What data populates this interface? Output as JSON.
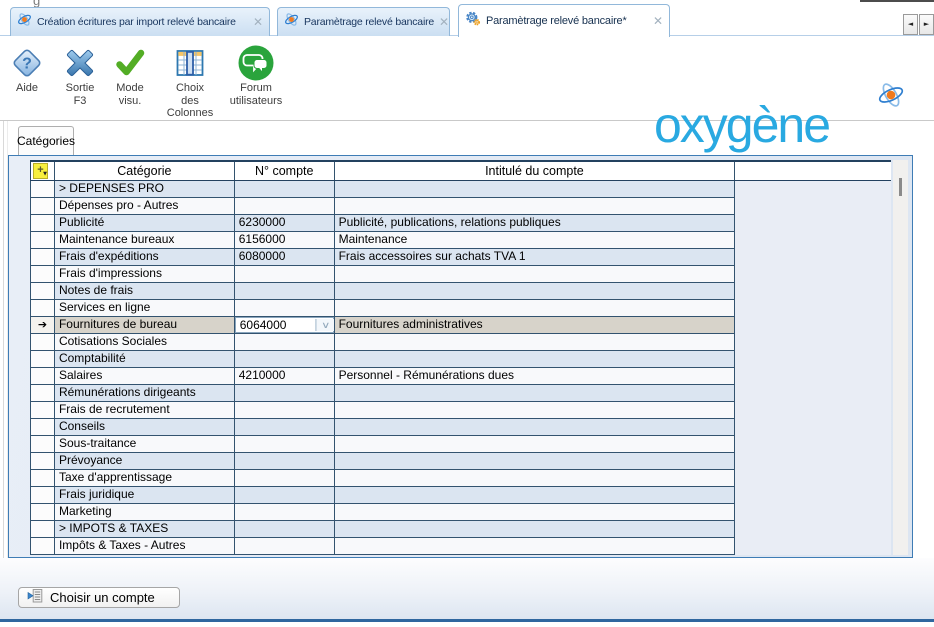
{
  "window": {
    "edge_fragment": "g"
  },
  "tab_bar": {
    "close_glyph": "✕",
    "scroll_left_glyph": "◄",
    "scroll_right_glyph": "►",
    "tabs": [
      {
        "label": "Création écritures par import relevé bancaire"
      },
      {
        "label": "Paramètrage relevé bancaire"
      },
      {
        "label": "Paramètrage relevé bancaire*"
      }
    ]
  },
  "toolbar": {
    "buttons": [
      {
        "label": "Aide"
      },
      {
        "label": "Sortie\nF3"
      },
      {
        "label": "Mode\nvisu."
      },
      {
        "label": "Choix\ndes\nColonnes"
      },
      {
        "label": "Forum\nutilisateurs"
      }
    ]
  },
  "logo": {
    "text": "oxygène"
  },
  "subtab": {
    "label": "Catégories"
  },
  "table": {
    "add_row_glyph": "+",
    "columns": {
      "category": "Catégorie",
      "account": "N° compte",
      "title": "Intitulé du compte"
    },
    "selected_index": 8,
    "selected_marker": "➔",
    "combo_chevron": "∨",
    "rows": [
      {
        "category": "> DEPENSES PRO",
        "account": "",
        "label": ""
      },
      {
        "category": "Dépenses pro - Autres",
        "account": "",
        "label": ""
      },
      {
        "category": "Publicité",
        "account": "6230000",
        "label": "Publicité, publications, relations publiques"
      },
      {
        "category": "Maintenance bureaux",
        "account": "6156000",
        "label": "Maintenance"
      },
      {
        "category": "Frais d'expéditions",
        "account": "6080000",
        "label": "Frais accessoires sur achats TVA 1"
      },
      {
        "category": "Frais d'impressions",
        "account": "",
        "label": ""
      },
      {
        "category": "Notes de frais",
        "account": "",
        "label": ""
      },
      {
        "category": "Services en ligne",
        "account": "",
        "label": ""
      },
      {
        "category": "Fournitures de bureau",
        "account": "6064000",
        "label": "Fournitures administratives"
      },
      {
        "category": "Cotisations Sociales",
        "account": "",
        "label": ""
      },
      {
        "category": "Comptabilité",
        "account": "",
        "label": ""
      },
      {
        "category": "Salaires",
        "account": "4210000",
        "label": "Personnel - Rémunérations dues"
      },
      {
        "category": "Rémunérations dirigeants",
        "account": "",
        "label": ""
      },
      {
        "category": "Frais de recrutement",
        "account": "",
        "label": ""
      },
      {
        "category": "Conseils",
        "account": "",
        "label": ""
      },
      {
        "category": "Sous-traitance",
        "account": "",
        "label": ""
      },
      {
        "category": "Prévoyance",
        "account": "",
        "label": ""
      },
      {
        "category": "Taxe d'apprentissage",
        "account": "",
        "label": ""
      },
      {
        "category": "Frais juridique",
        "account": "",
        "label": ""
      },
      {
        "category": "Marketing",
        "account": "",
        "label": ""
      },
      {
        "category": "> IMPOTS & TAXES",
        "account": "",
        "label": ""
      },
      {
        "category": "Impôts & Taxes - Autres",
        "account": "",
        "label": ""
      }
    ]
  },
  "footer": {
    "choose_account_label": "Choisir un compte"
  },
  "colors": {
    "logo_blue": "#29a9e1",
    "row_alt_blue": "#dbe5f1",
    "row_white": "#f8f9fb",
    "selected_row": "#d7d3ca",
    "grid_line": "#33536f",
    "panel_border": "#3e7cb5"
  }
}
